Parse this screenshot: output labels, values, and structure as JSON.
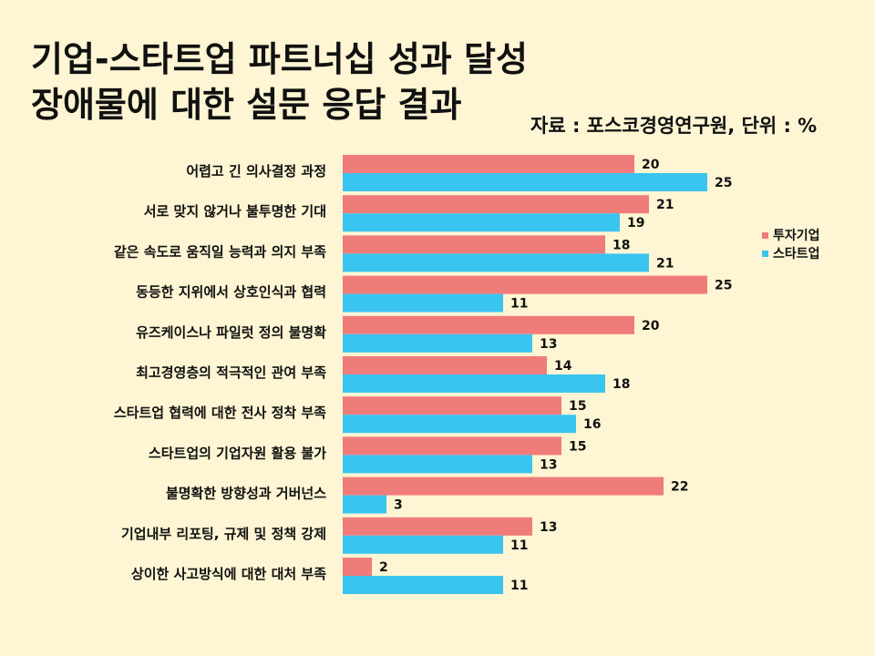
{
  "header": {
    "title_line1": "기업-스타트업 파트너십 성과 달성",
    "title_line2": "장애물에 대한 설문 응답 결과",
    "source": "자료 : 포스코경영연구원, 단위 : %"
  },
  "colors": {
    "investor": "#f07c7a",
    "startup": "#3ac4f0",
    "background": "#fdf5d3"
  },
  "chart_data": {
    "type": "bar",
    "orientation": "horizontal",
    "categories": [
      "어렵고 긴 의사결정 과정",
      "서로 맞지 않거나 불투명한 기대",
      "같은 속도로 움직일 능력과 의지 부족",
      "동등한 지위에서 상호인식과 협력",
      "유즈케이스나 파일럿 정의 불명확",
      "최고경영층의 적극적인 관여 부족",
      "스타트업 협력에 대한 전사 정착 부족",
      "스타트업의 기업자원 활용 불가",
      "불명확한 방향성과 거버넌스",
      "기업내부 리포팅, 규제 및 정책 강제",
      "상이한 사고방식에 대한 대처 부족"
    ],
    "series": [
      {
        "name": "투자기업",
        "values": [
          20,
          21,
          18,
          25,
          20,
          14,
          15,
          15,
          22,
          13,
          2
        ]
      },
      {
        "name": "스타트업",
        "values": [
          25,
          19,
          21,
          11,
          13,
          18,
          16,
          13,
          3,
          11,
          11
        ]
      }
    ],
    "xlim": [
      0,
      30
    ],
    "grid": false,
    "legend_position": "right"
  }
}
